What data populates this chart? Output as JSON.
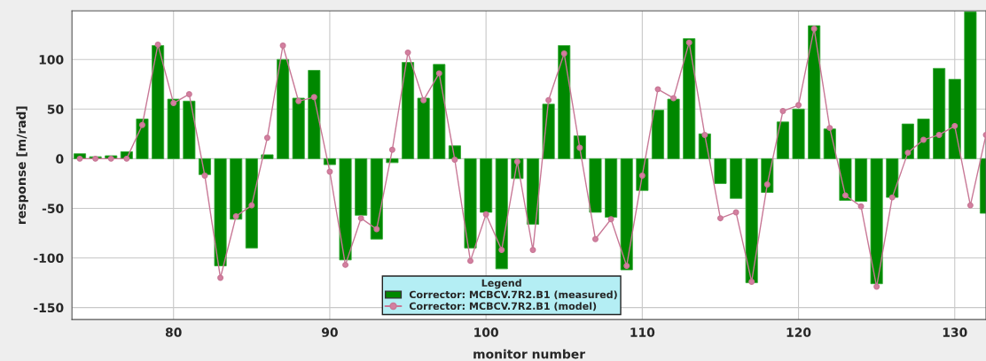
{
  "chart_data": {
    "type": "bar",
    "xlabel": "monitor number",
    "ylabel": "response [m/rad]",
    "legend_title": "Legend",
    "x": [
      74,
      75,
      76,
      77,
      78,
      79,
      80,
      81,
      82,
      83,
      84,
      85,
      86,
      87,
      88,
      89,
      90,
      91,
      92,
      93,
      94,
      95,
      96,
      97,
      98,
      99,
      100,
      101,
      102,
      103,
      104,
      105,
      106,
      107,
      108,
      109,
      110,
      111,
      112,
      113,
      114,
      115,
      116,
      117,
      118,
      119,
      120,
      121,
      122,
      123,
      124,
      125,
      126,
      127,
      128,
      129,
      130,
      131,
      132
    ],
    "series": [
      {
        "name": "Corrector: MCBCV.7R2.B1 (measured)",
        "color": "#008800",
        "values": [
          5,
          2,
          3,
          7,
          40,
          114,
          60,
          58,
          -16,
          -108,
          -61,
          -90,
          4,
          100,
          61,
          89,
          -6,
          -102,
          -57,
          -81,
          -4,
          97,
          61,
          95,
          13,
          -90,
          -54,
          -111,
          -20,
          -66,
          55,
          114,
          23,
          -54,
          -59,
          -112,
          -32,
          49,
          60,
          121,
          25,
          -25,
          -40,
          -125,
          -34,
          37,
          50,
          134,
          30,
          -42,
          -43,
          -126,
          -39,
          35,
          40,
          91,
          80,
          148,
          -55
        ]
      },
      {
        "name": "Corrector: MCBCV.7R2.B1 (model)",
        "type": "line",
        "color": "#c87896",
        "marker": "circle",
        "line_style": "solid",
        "values": [
          0,
          0,
          0,
          0,
          34,
          115,
          56,
          65,
          -17,
          -120,
          -58,
          -47,
          21,
          114,
          58,
          62,
          -13,
          -107,
          -60,
          -71,
          9,
          107,
          59,
          86,
          -1,
          -103,
          -56,
          -92,
          -3,
          -92,
          59,
          106,
          11,
          -81,
          -61,
          -108,
          -17,
          70,
          61,
          117,
          24,
          -60,
          -54,
          -124,
          -26,
          48,
          54,
          131,
          31,
          -37,
          -48,
          -129,
          -39,
          6,
          19,
          24,
          33,
          -47,
          24
        ]
      }
    ],
    "xlim": [
      73.5,
      132
    ],
    "xticks": [
      80,
      90,
      100,
      110,
      120,
      130
    ],
    "ylim": [
      -162,
      149
    ],
    "yticks": [
      -150,
      -100,
      -50,
      0,
      50,
      100
    ],
    "grid": true,
    "legend": "bottom"
  }
}
